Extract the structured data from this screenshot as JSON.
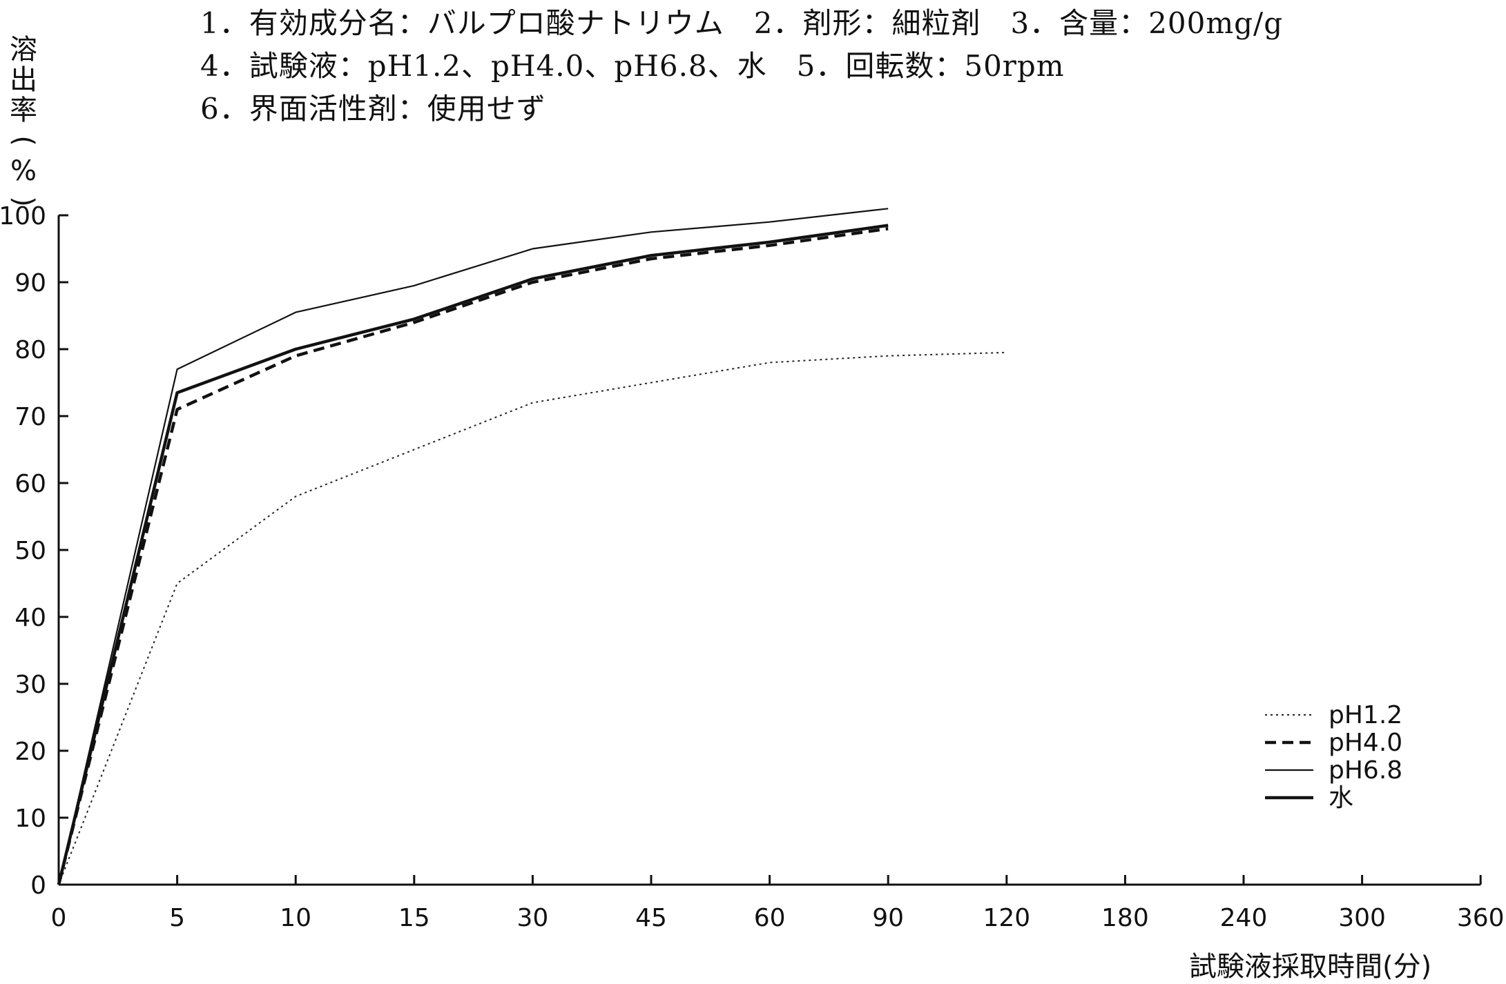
{
  "header": {
    "line1": "1．有効成分名：バルプロ酸ナトリウム　2．剤形：細粒剤　3．含量：200mg/g",
    "line2": "4．試験液：pH1.2、pH4.0、pH6.8、水　5．回転数：50rpm",
    "line3": "6．界面活性剤：使用せず"
  },
  "chart_data": {
    "type": "line",
    "ylabel": "溶出率(%)",
    "xlabel": "試験液採取時間(分)",
    "x_tick_labels": [
      "0",
      "5",
      "10",
      "15",
      "30",
      "45",
      "60",
      "90",
      "120",
      "180",
      "240",
      "300",
      "360"
    ],
    "y_tick_labels": [
      "0",
      "10",
      "20",
      "30",
      "40",
      "50",
      "60",
      "70",
      "80",
      "90",
      "100"
    ],
    "x_scale": "categorical (unevenly spaced sampling times, equally spaced on axis)",
    "ylim": [
      0,
      100
    ],
    "grid": false,
    "legend_position": "bottom-right",
    "series": [
      {
        "name": "pH1.2",
        "style": "dotted-thin",
        "x": [
          0,
          5,
          10,
          15,
          30,
          45,
          60,
          90,
          120
        ],
        "values": [
          0,
          45,
          58,
          65,
          72,
          75,
          78,
          79,
          79.5
        ]
      },
      {
        "name": "pH4.0",
        "style": "dashed-thick",
        "x": [
          0,
          5,
          10,
          15,
          30,
          45,
          60,
          90
        ],
        "values": [
          0,
          71,
          79,
          84,
          90,
          93.5,
          95.5,
          98
        ]
      },
      {
        "name": "pH6.8",
        "style": "solid-thin",
        "x": [
          0,
          5,
          10,
          15,
          30,
          45,
          60,
          90
        ],
        "values": [
          0,
          77,
          85.5,
          89.5,
          95,
          97.5,
          99,
          101
        ]
      },
      {
        "name": "水",
        "style": "solid-thick",
        "x": [
          0,
          5,
          10,
          15,
          30,
          45,
          60,
          90
        ],
        "values": [
          0,
          73.5,
          80,
          84.5,
          90.5,
          94,
          96,
          98.5
        ]
      }
    ]
  }
}
